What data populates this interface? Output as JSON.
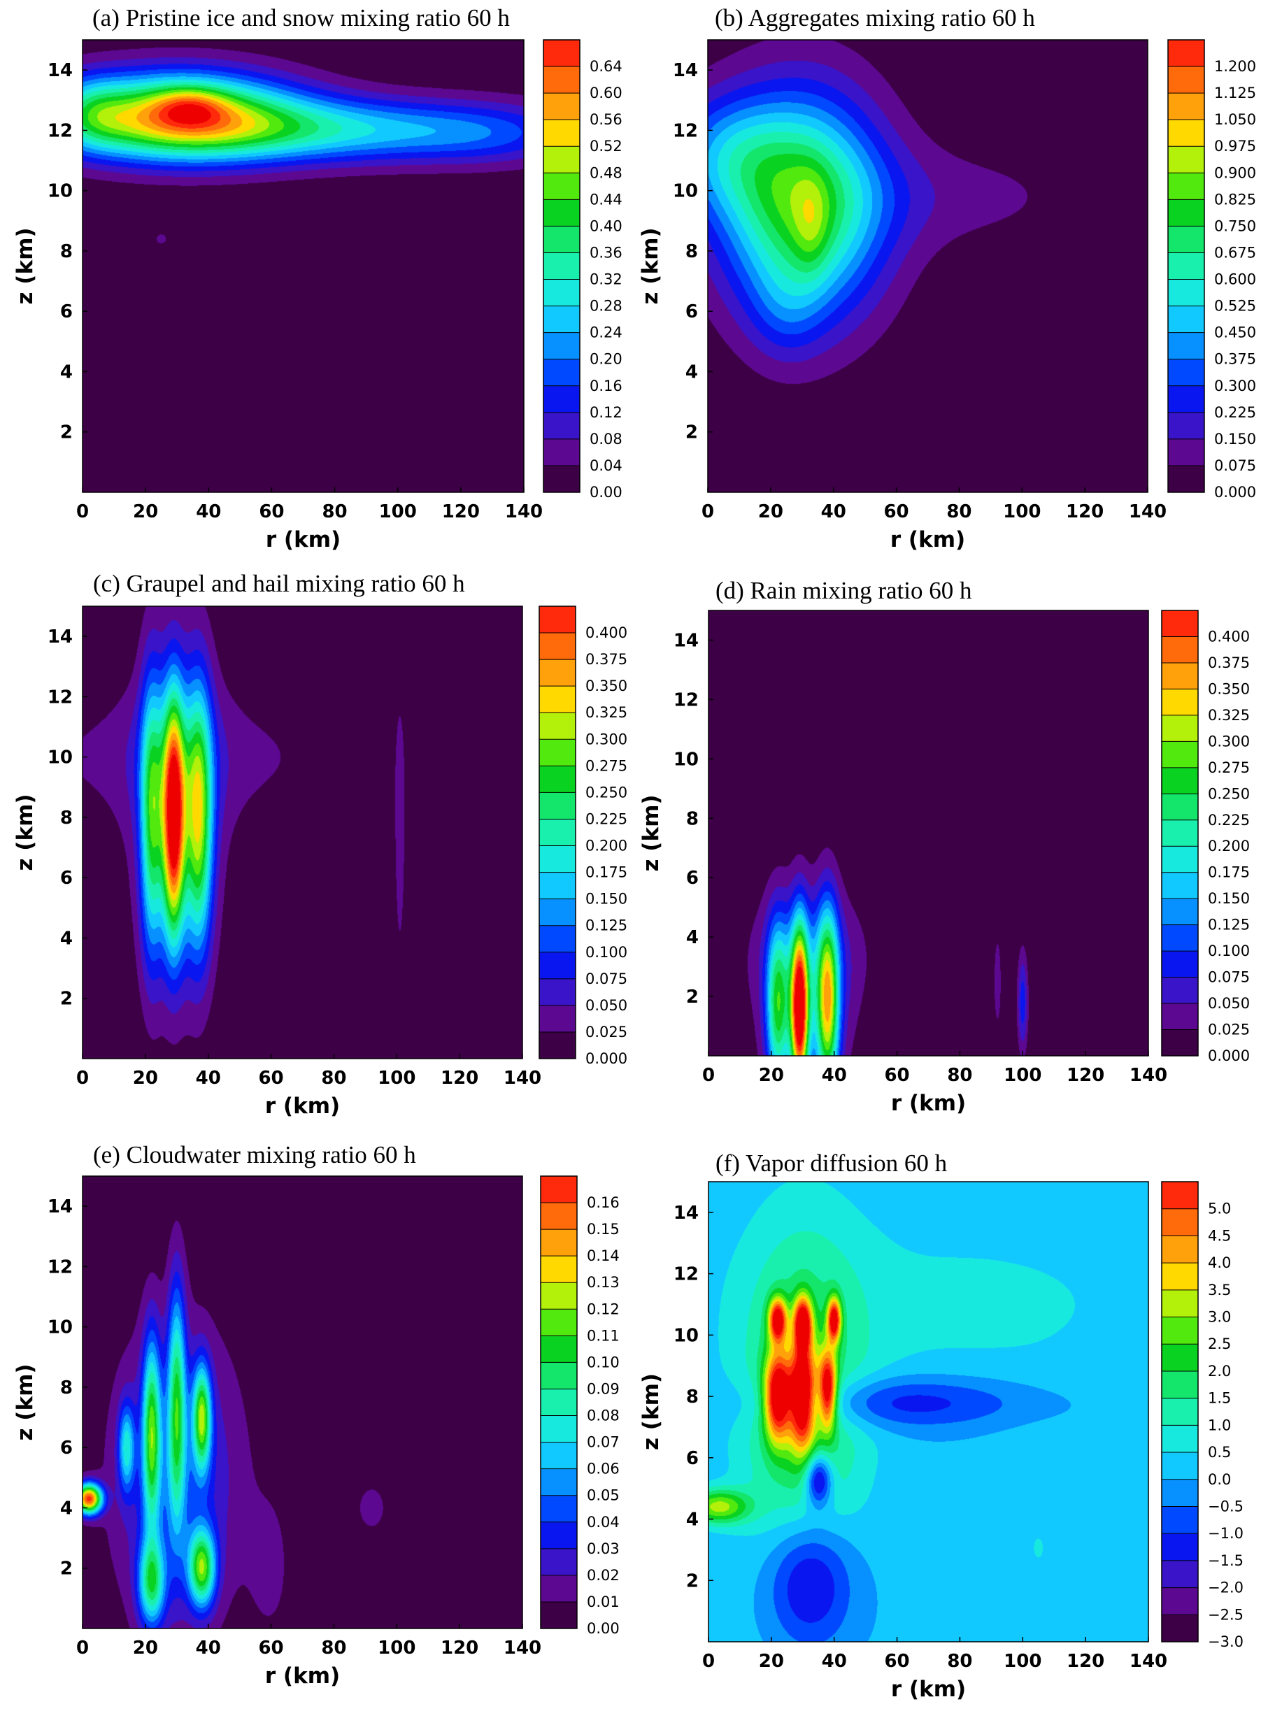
{
  "palette": [
    "#3d0046",
    "#5c0891",
    "#3a14c8",
    "#0a16f0",
    "#0049ff",
    "#0790ff",
    "#12c9ff",
    "#18e9df",
    "#19f0ad",
    "#14e56b",
    "#0ad220",
    "#52e90f",
    "#b3f00a",
    "#ffd900",
    "#ffa10a",
    "#ff6a0b",
    "#ff2a0b",
    "#ee0000"
  ],
  "chart_data": [
    {
      "id": "a",
      "type": "heatmap",
      "title": "(a) Pristine ice and snow mixing ratio   60 h",
      "xlabel": "r (km)",
      "ylabel": "z (km)",
      "xlim": [
        0,
        140
      ],
      "ylim": [
        0,
        15
      ],
      "xticks": [
        "0",
        "20",
        "40",
        "60",
        "80",
        "100",
        "120",
        "140"
      ],
      "yticks": [
        "2",
        "4",
        "6",
        "8",
        "10",
        "12",
        "14"
      ],
      "colorbar": [
        "0.00",
        "0.04",
        "0.08",
        "0.12",
        "0.16",
        "0.20",
        "0.24",
        "0.28",
        "0.32",
        "0.36",
        "0.40",
        "0.44",
        "0.48",
        "0.52",
        "0.56",
        "0.60",
        "0.64"
      ],
      "vmax": 0.68,
      "blobs": [
        {
          "r": 30,
          "z": 12.5,
          "sr": 26,
          "sz": 1.0,
          "v": 0.5
        },
        {
          "r": 80,
          "z": 12.0,
          "sr": 45,
          "sz": 0.75,
          "v": 0.26
        },
        {
          "r": 34,
          "z": 12.8,
          "sr": 8,
          "sz": 0.45,
          "v": 0.14
        },
        {
          "r": 3,
          "z": 12.6,
          "sr": 8,
          "sz": 0.8,
          "v": 0.12
        },
        {
          "r": 130,
          "z": 11.8,
          "sr": 18,
          "sz": 0.7,
          "v": 0.06
        },
        {
          "r": 25,
          "z": 8.4,
          "sr": 3,
          "sz": 0.3,
          "v": 0.045
        }
      ]
    },
    {
      "id": "b",
      "type": "heatmap",
      "title": "(b) Aggregates mixing ratio   60 h",
      "xlabel": "r (km)",
      "ylabel": "z (km)",
      "xlim": [
        0,
        140
      ],
      "ylim": [
        0,
        15
      ],
      "xticks": [
        "0",
        "20",
        "40",
        "60",
        "80",
        "100",
        "120",
        "140"
      ],
      "yticks": [
        "2",
        "4",
        "6",
        "8",
        "10",
        "12",
        "14"
      ],
      "colorbar": [
        "0.000",
        "0.075",
        "0.150",
        "0.225",
        "0.300",
        "0.375",
        "0.450",
        "0.525",
        "0.600",
        "0.675",
        "0.750",
        "0.825",
        "0.900",
        "0.975",
        "1.050",
        "1.125",
        "1.200"
      ],
      "vmax": 1.275,
      "blobs": [
        {
          "r": 30,
          "z": 9.5,
          "sr": 18,
          "sz": 2.6,
          "v": 0.8
        },
        {
          "r": 33,
          "z": 8.8,
          "sr": 4,
          "sz": 1.2,
          "v": 0.15
        },
        {
          "r": 5,
          "z": 11.2,
          "sr": 14,
          "sz": 1.4,
          "v": 0.3
        },
        {
          "r": 75,
          "z": 9.8,
          "sr": 35,
          "sz": 1.3,
          "v": 0.1
        },
        {
          "r": 25,
          "z": 6,
          "sr": 8,
          "sz": 1.2,
          "v": 0.12
        }
      ]
    },
    {
      "id": "c",
      "type": "heatmap",
      "title": "(c) Graupel and hail mixing ratio   60 h",
      "xlabel": "r (km)",
      "ylabel": "z (km)",
      "xlim": [
        0,
        140
      ],
      "ylim": [
        0,
        15
      ],
      "xticks": [
        "0",
        "20",
        "40",
        "60",
        "80",
        "100",
        "120",
        "140"
      ],
      "yticks": [
        "2",
        "4",
        "6",
        "8",
        "10",
        "12",
        "14"
      ],
      "colorbar": [
        "0.000",
        "0.025",
        "0.050",
        "0.075",
        "0.100",
        "0.125",
        "0.150",
        "0.175",
        "0.200",
        "0.225",
        "0.250",
        "0.275",
        "0.300",
        "0.325",
        "0.350",
        "0.375",
        "0.400"
      ],
      "vmax": 0.425,
      "blobs": [
        {
          "r": 29,
          "z": 8,
          "sr": 2.5,
          "sz": 2.8,
          "v": 0.39
        },
        {
          "r": 22,
          "z": 8,
          "sr": 2.5,
          "sz": 3.2,
          "v": 0.2
        },
        {
          "r": 37,
          "z": 8,
          "sr": 3,
          "sz": 3.0,
          "v": 0.25
        },
        {
          "r": 30,
          "z": 8,
          "sr": 9,
          "sz": 3.8,
          "v": 0.1
        },
        {
          "r": 30,
          "z": 10,
          "sr": 40,
          "sz": 1.7,
          "v": 0.035
        },
        {
          "r": 101,
          "z": 7.5,
          "sr": 1.2,
          "sz": 3.0,
          "v": 0.045
        }
      ]
    },
    {
      "id": "d",
      "type": "heatmap",
      "title": "(d) Rain mixing ratio   60 h",
      "xlabel": "r (km)",
      "ylabel": "z (km)",
      "xlim": [
        0,
        140
      ],
      "ylim": [
        0,
        15
      ],
      "xticks": [
        "0",
        "20",
        "40",
        "60",
        "80",
        "100",
        "120",
        "140"
      ],
      "yticks": [
        "2",
        "4",
        "6",
        "8",
        "10",
        "12",
        "14"
      ],
      "colorbar": [
        "0.000",
        "0.025",
        "0.050",
        "0.075",
        "0.100",
        "0.125",
        "0.150",
        "0.175",
        "0.200",
        "0.225",
        "0.250",
        "0.275",
        "0.300",
        "0.325",
        "0.350",
        "0.375",
        "0.400"
      ],
      "vmax": 0.425,
      "blobs": [
        {
          "r": 29,
          "z": 1.5,
          "sr": 2,
          "sz": 2.0,
          "v": 0.4
        },
        {
          "r": 22,
          "z": 1.6,
          "sr": 2.5,
          "sz": 2.0,
          "v": 0.2
        },
        {
          "r": 38,
          "z": 1.8,
          "sr": 2.5,
          "sz": 2.2,
          "v": 0.28
        },
        {
          "r": 31,
          "z": 1.8,
          "sr": 9,
          "sz": 2.3,
          "v": 0.1
        },
        {
          "r": 32,
          "z": 3.5,
          "sr": 14,
          "sz": 1.5,
          "v": 0.04
        },
        {
          "r": 100,
          "z": 1.8,
          "sr": 1.2,
          "sz": 1.2,
          "v": 0.09
        },
        {
          "r": 92,
          "z": 2.5,
          "sr": 1,
          "sz": 1.3,
          "v": 0.04
        }
      ]
    },
    {
      "id": "e",
      "type": "heatmap",
      "title": "(e) Cloudwater mixing ratio   60 h",
      "xlabel": "r (km)",
      "ylabel": "z (km)",
      "xlim": [
        0,
        140
      ],
      "ylim": [
        0,
        15
      ],
      "xticks": [
        "0",
        "20",
        "40",
        "60",
        "80",
        "100",
        "120",
        "140"
      ],
      "yticks": [
        "2",
        "4",
        "6",
        "8",
        "10",
        "12",
        "14"
      ],
      "colorbar": [
        "0.00",
        "0.01",
        "0.02",
        "0.03",
        "0.04",
        "0.05",
        "0.06",
        "0.07",
        "0.08",
        "0.09",
        "0.10",
        "0.11",
        "0.12",
        "0.13",
        "0.14",
        "0.15",
        "0.16"
      ],
      "vmax": 0.17,
      "blobs": [
        {
          "r": 2,
          "z": 4.3,
          "sr": 3,
          "sz": 0.35,
          "v": 0.16
        },
        {
          "r": 22,
          "z": 6.5,
          "sr": 2,
          "sz": 2.2,
          "v": 0.09
        },
        {
          "r": 30,
          "z": 7.5,
          "sr": 2,
          "sz": 2.8,
          "v": 0.08
        },
        {
          "r": 38,
          "z": 7,
          "sr": 2,
          "sz": 1.2,
          "v": 0.1
        },
        {
          "r": 38,
          "z": 2,
          "sr": 3,
          "sz": 0.9,
          "v": 0.1
        },
        {
          "r": 22,
          "z": 1.5,
          "sr": 3,
          "sz": 1.0,
          "v": 0.08
        },
        {
          "r": 30,
          "z": 5,
          "sr": 14,
          "sz": 3.5,
          "v": 0.04
        },
        {
          "r": 14,
          "z": 6,
          "sr": 1.8,
          "sz": 1.0,
          "v": 0.06
        },
        {
          "r": 60,
          "z": 2,
          "sr": 5,
          "sz": 1.8,
          "v": 0.012
        },
        {
          "r": 92,
          "z": 4,
          "sr": 6,
          "sz": 1.0,
          "v": 0.012
        }
      ]
    },
    {
      "id": "f",
      "type": "heatmap",
      "title": "(f) Vapor diffusion   60 h",
      "xlabel": "r (km)",
      "ylabel": "z (km)",
      "xlim": [
        0,
        140
      ],
      "ylim": [
        0,
        15
      ],
      "xticks": [
        "0",
        "20",
        "40",
        "60",
        "80",
        "100",
        "120",
        "140"
      ],
      "yticks": [
        "2",
        "4",
        "6",
        "8",
        "10",
        "12",
        "14"
      ],
      "colorbar": [
        "−3.0",
        "−2.5",
        "−2.0",
        "−1.5",
        "−1.0",
        "−0.5",
        "0.0",
        "0.5",
        "1.0",
        "1.5",
        "2.0",
        "2.5",
        "3.0",
        "3.5",
        "4.0",
        "4.5",
        "5.0"
      ],
      "vmin": -3.0,
      "vmax": 5.5,
      "base": 0.0,
      "blobs": [
        {
          "r": 22,
          "z": 8,
          "sr": 3,
          "sz": 1.0,
          "v": 5.5
        },
        {
          "r": 30,
          "z": 8,
          "sr": 3,
          "sz": 1.2,
          "v": 5.5
        },
        {
          "r": 38,
          "z": 8.2,
          "sr": 2,
          "sz": 0.9,
          "v": 5
        },
        {
          "r": 22,
          "z": 10.5,
          "sr": 2,
          "sz": 0.5,
          "v": 5
        },
        {
          "r": 30,
          "z": 10.4,
          "sr": 2,
          "sz": 0.6,
          "v": 5
        },
        {
          "r": 40,
          "z": 10.5,
          "sr": 1.5,
          "sz": 0.5,
          "v": 5
        },
        {
          "r": 30,
          "z": 7,
          "sr": 14,
          "sz": 4.5,
          "v": 2
        },
        {
          "r": 32,
          "z": 2,
          "sr": 10,
          "sz": 1.6,
          "v": -2.5
        },
        {
          "r": 35,
          "z": 5.3,
          "sr": 3,
          "sz": 0.6,
          "v": -3
        },
        {
          "r": 60,
          "z": 7.8,
          "sr": 30,
          "sz": 0.6,
          "v": -1.5
        },
        {
          "r": 80,
          "z": 11,
          "sr": 60,
          "sz": 2.5,
          "v": 0.6
        },
        {
          "r": 105,
          "z": 3,
          "sr": 12,
          "sz": 2.5,
          "v": 0.5
        },
        {
          "r": 3,
          "z": 4.4,
          "sr": 7,
          "sz": 0.4,
          "v": 3
        }
      ]
    }
  ]
}
